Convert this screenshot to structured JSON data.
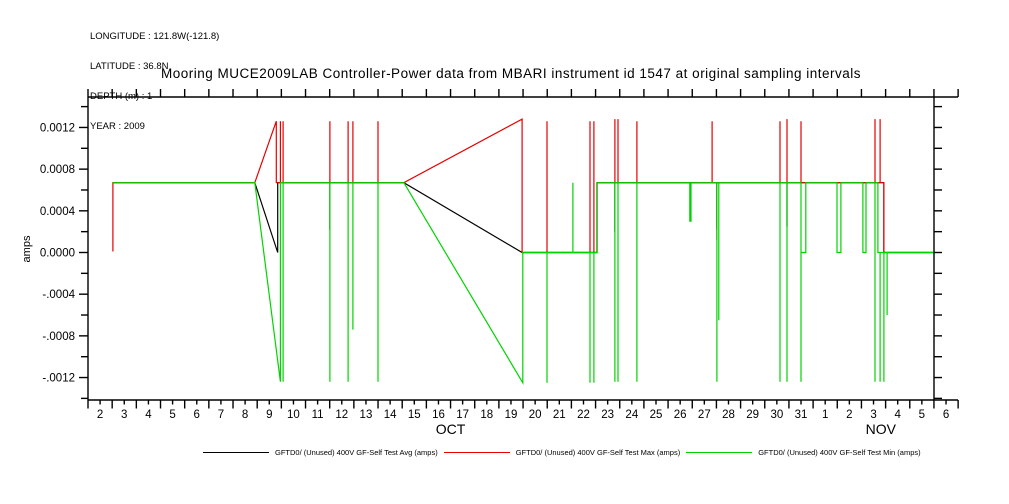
{
  "header": {
    "lines": [
      "LONGITUDE : 121.8W(-121.8)",
      "LATITUDE : 36.8N",
      "DEPTH (m) : 1",
      "YEAR : 2009"
    ]
  },
  "title": "Mooring MUCE2009LAB Controller-Power data from MBARI instrument id 1547 at original sampling intervals",
  "chart_data": {
    "type": "line",
    "title": "Mooring MUCE2009LAB Controller-Power data from MBARI instrument id 1547 at original sampling intervals",
    "ylabel": "amps",
    "xlabel": "",
    "grid": false,
    "legend_position": "bottom",
    "x_units": "days since Oct 1 2009 00:00",
    "x_range_days": [
      1,
      37
    ],
    "ylim": [
      -0.00145,
      0.00151
    ],
    "yticks": [
      {
        "v": 0.0012,
        "label": "0.0012"
      },
      {
        "v": 0.0008,
        "label": "0.0008"
      },
      {
        "v": 0.0004,
        "label": "0.0004"
      },
      {
        "v": 0.0,
        "label": "0.0000"
      },
      {
        "v": -0.0004,
        "label": "-.0004"
      },
      {
        "v": -0.0008,
        "label": "-.0008"
      },
      {
        "v": -0.0012,
        "label": "-.0012"
      }
    ],
    "ytick_minor_step": 0.0002,
    "x_day_labels": [
      "2",
      "3",
      "4",
      "5",
      "6",
      "7",
      "8",
      "9",
      "10",
      "11",
      "12",
      "13",
      "14",
      "15",
      "16",
      "17",
      "18",
      "19",
      "20",
      "21",
      "22",
      "23",
      "24",
      "25",
      "26",
      "27",
      "28",
      "29",
      "30",
      "31",
      "1",
      "2",
      "3",
      "4",
      "5",
      "6"
    ],
    "month_labels": [
      {
        "text": "OCT",
        "t": 16.0
      },
      {
        "text": "NOV",
        "t": 33.8
      }
    ],
    "series": [
      {
        "name": "GFTD0/ (Unused) 400V GF-Self Test Avg (amps)",
        "color": "#000000",
        "points": [
          [
            2.03,
            0.00067
          ],
          [
            7.9,
            0.00067
          ],
          [
            8.85,
            0.0
          ],
          [
            8.85,
            0.00067
          ],
          [
            11.01,
            0.00067
          ],
          [
            11.01,
            0.00022
          ],
          [
            11.01,
            0.00067
          ],
          [
            14.07,
            0.00067
          ],
          [
            18.96,
            0.0
          ],
          [
            22.06,
            0.0
          ],
          [
            22.06,
            0.00067
          ],
          [
            22.8,
            0.00067
          ],
          [
            22.8,
            0.0002
          ],
          [
            22.8,
            0.00067
          ],
          [
            27.02,
            0.00067
          ],
          [
            27.02,
            0.00022
          ],
          [
            27.02,
            0.00067
          ],
          [
            29.92,
            0.00067
          ],
          [
            29.92,
            0.00025
          ],
          [
            29.92,
            0.00067
          ],
          [
            33.93,
            0.00067
          ],
          [
            33.93,
            0.0
          ],
          [
            35.98,
            0.0
          ]
        ]
      },
      {
        "name": "GFTD0/ (Unused) 400V GF-Self Test Max (amps)",
        "color": "#e60000",
        "points": [
          [
            2.03,
            0.00067
          ],
          [
            2.03,
            1e-05
          ],
          [
            2.03,
            0.00067
          ],
          [
            7.9,
            0.00067
          ],
          [
            8.79,
            0.00126
          ],
          [
            8.79,
            0.00067
          ],
          [
            8.96,
            0.00067
          ],
          [
            8.96,
            0.00126
          ],
          [
            8.96,
            0.00067
          ],
          [
            9.07,
            0.00067
          ],
          [
            9.07,
            0.00126
          ],
          [
            9.07,
            0.00067
          ],
          [
            11.01,
            0.00067
          ],
          [
            11.01,
            0.00126
          ],
          [
            11.01,
            0.00067
          ],
          [
            11.76,
            0.00067
          ],
          [
            11.76,
            0.00126
          ],
          [
            11.76,
            0.00067
          ],
          [
            11.96,
            0.00067
          ],
          [
            11.96,
            0.00126
          ],
          [
            11.96,
            0.00067
          ],
          [
            13.0,
            0.00067
          ],
          [
            13.0,
            0.00126
          ],
          [
            13.0,
            0.00067
          ],
          [
            14.07,
            0.00067
          ],
          [
            18.96,
            0.00128
          ],
          [
            18.96,
            0.0
          ],
          [
            19.99,
            0.0
          ],
          [
            19.99,
            0.00126
          ],
          [
            19.99,
            0.0
          ],
          [
            21.77,
            0.0
          ],
          [
            21.77,
            0.00126
          ],
          [
            21.77,
            0.0
          ],
          [
            21.93,
            0.0
          ],
          [
            21.93,
            0.00126
          ],
          [
            21.93,
            0.0
          ],
          [
            22.06,
            0.0
          ],
          [
            22.06,
            0.00067
          ],
          [
            22.8,
            0.00067
          ],
          [
            22.8,
            0.00128
          ],
          [
            22.8,
            0.00067
          ],
          [
            22.93,
            0.00067
          ],
          [
            22.93,
            0.00128
          ],
          [
            22.93,
            0.00067
          ],
          [
            23.71,
            0.00067
          ],
          [
            23.71,
            0.00126
          ],
          [
            23.71,
            0.00067
          ],
          [
            26.82,
            0.00067
          ],
          [
            26.82,
            0.00126
          ],
          [
            26.82,
            0.00067
          ],
          [
            27.02,
            0.00067
          ],
          [
            27.02,
            0.00012
          ],
          [
            27.02,
            0.00067
          ],
          [
            29.63,
            0.00067
          ],
          [
            29.63,
            0.00126
          ],
          [
            29.63,
            0.00067
          ],
          [
            29.92,
            0.00067
          ],
          [
            29.92,
            0.00128
          ],
          [
            29.92,
            0.00067
          ],
          [
            30.5,
            0.00067
          ],
          [
            30.5,
            0.00126
          ],
          [
            30.5,
            0.00067
          ],
          [
            33.56,
            0.00067
          ],
          [
            33.56,
            0.00128
          ],
          [
            33.56,
            0.00067
          ],
          [
            33.77,
            0.00067
          ],
          [
            33.77,
            0.00128
          ],
          [
            33.77,
            0.00067
          ],
          [
            33.93,
            0.00067
          ],
          [
            33.93,
            0.0
          ],
          [
            35.98,
            0.0
          ]
        ]
      },
      {
        "name": "GFTD0/ (Unused) 400V GF-Self Test Min (amps)",
        "color": "#00d400",
        "points": [
          [
            2.03,
            0.00067
          ],
          [
            7.9,
            0.00067
          ],
          [
            8.96,
            -0.00124
          ],
          [
            8.96,
            0.00067
          ],
          [
            9.07,
            0.00067
          ],
          [
            9.07,
            -0.00124
          ],
          [
            9.07,
            0.00067
          ],
          [
            11.01,
            0.00067
          ],
          [
            11.01,
            -0.00124
          ],
          [
            11.01,
            0.00067
          ],
          [
            11.76,
            0.00067
          ],
          [
            11.76,
            -0.00124
          ],
          [
            11.76,
            0.00067
          ],
          [
            11.96,
            0.00067
          ],
          [
            11.96,
            -0.00074
          ],
          [
            11.96,
            0.00067
          ],
          [
            13.0,
            0.00067
          ],
          [
            13.0,
            -0.00124
          ],
          [
            13.0,
            0.00067
          ],
          [
            14.07,
            0.00067
          ],
          [
            18.99,
            -0.00125
          ],
          [
            18.99,
            0.0
          ],
          [
            19.99,
            0.0
          ],
          [
            19.99,
            -0.00125
          ],
          [
            19.99,
            0.0
          ],
          [
            21.06,
            0.0
          ],
          [
            21.06,
            0.00067
          ],
          [
            21.06,
            0.0
          ],
          [
            21.77,
            0.0
          ],
          [
            21.77,
            -0.00125
          ],
          [
            21.77,
            0.0
          ],
          [
            21.93,
            0.0
          ],
          [
            21.93,
            -0.00125
          ],
          [
            21.93,
            0.0
          ],
          [
            22.06,
            0.0
          ],
          [
            22.06,
            0.00067
          ],
          [
            22.8,
            0.00067
          ],
          [
            22.8,
            -0.00124
          ],
          [
            22.8,
            0.00067
          ],
          [
            22.93,
            0.00067
          ],
          [
            22.93,
            -0.00124
          ],
          [
            22.93,
            0.00067
          ],
          [
            23.71,
            0.00067
          ],
          [
            23.71,
            -0.00124
          ],
          [
            23.71,
            0.00067
          ],
          [
            25.9,
            0.00067
          ],
          [
            25.9,
            0.0003
          ],
          [
            25.95,
            0.0003
          ],
          [
            25.95,
            0.00067
          ],
          [
            27.02,
            0.00067
          ],
          [
            27.02,
            -0.00124
          ],
          [
            27.02,
            0.00067
          ],
          [
            27.1,
            0.00067
          ],
          [
            27.1,
            -0.00065
          ],
          [
            27.1,
            0.00067
          ],
          [
            29.63,
            0.00067
          ],
          [
            29.63,
            -0.00124
          ],
          [
            29.63,
            0.00067
          ],
          [
            29.92,
            0.00067
          ],
          [
            29.92,
            -0.00124
          ],
          [
            29.92,
            0.00067
          ],
          [
            30.5,
            0.00067
          ],
          [
            30.5,
            -0.00124
          ],
          [
            30.5,
            0.0
          ],
          [
            30.7,
            0.0
          ],
          [
            30.7,
            0.00067
          ],
          [
            31.99,
            0.00067
          ],
          [
            31.99,
            0.0
          ],
          [
            32.15,
            0.0
          ],
          [
            32.15,
            0.00067
          ],
          [
            33.06,
            0.00067
          ],
          [
            33.06,
            0.0
          ],
          [
            33.19,
            0.0
          ],
          [
            33.19,
            0.00067
          ],
          [
            33.56,
            0.00067
          ],
          [
            33.56,
            -0.00124
          ],
          [
            33.56,
            0.00067
          ],
          [
            33.68,
            0.00067
          ],
          [
            33.68,
            0.0
          ],
          [
            33.77,
            0.0
          ],
          [
            33.77,
            -0.00124
          ],
          [
            33.77,
            0.0
          ],
          [
            33.93,
            0.0
          ],
          [
            33.93,
            -0.00124
          ],
          [
            33.93,
            0.0
          ],
          [
            34.06,
            0.0
          ],
          [
            34.06,
            -0.0006
          ],
          [
            34.06,
            0.0
          ],
          [
            35.98,
            0.0
          ]
        ]
      }
    ]
  }
}
